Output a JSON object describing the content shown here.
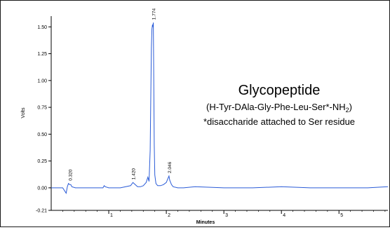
{
  "chart_data": {
    "type": "line",
    "title": "Glycopeptide",
    "subtitle_main": "(H-Tyr-DAla-Gly-Phe-Leu-Ser*-NH",
    "subtitle_sub": "2",
    "subtitle_end": ")",
    "note": "*disaccharide attached to Ser residue",
    "xlabel": "Minutes",
    "ylabel": "Volts",
    "xlim": [
      0,
      5.85
    ],
    "ylim": [
      -0.21,
      1.6
    ],
    "x_ticks": [
      1,
      2,
      3,
      4,
      5
    ],
    "y_ticks": [
      -0.21,
      0.0,
      0.25,
      0.5,
      0.75,
      1.0,
      1.25,
      1.5
    ],
    "y_tick_labels": [
      "-0.21",
      "0.00",
      "0.25",
      "0.50",
      "0.75",
      "1.00",
      "1.25",
      "1.50"
    ],
    "line_color": "#2a5bd7",
    "series": [
      {
        "x": [
          0.0,
          0.2,
          0.26,
          0.28,
          0.3,
          0.32,
          0.34,
          0.36,
          0.42,
          0.6,
          0.8,
          0.9,
          0.92,
          0.94,
          1.0,
          1.2,
          1.38,
          1.42,
          1.46,
          1.5,
          1.55,
          1.6,
          1.65,
          1.68,
          1.7,
          1.72,
          1.73,
          1.74,
          1.75,
          1.76,
          1.765,
          1.774,
          1.78,
          1.79,
          1.8,
          1.82,
          1.85,
          1.9,
          1.95,
          2.0,
          2.03,
          2.046,
          2.06,
          2.09,
          2.12,
          2.2,
          2.3,
          2.5,
          3.0,
          3.5,
          4.0,
          4.5,
          5.0,
          5.5,
          5.85
        ],
        "y": [
          0.0,
          0.0,
          -0.05,
          0.01,
          0.04,
          0.03,
          0.03,
          0.01,
          0.0,
          0.0,
          0.0,
          0.0,
          0.02,
          0.01,
          0.0,
          0.0,
          0.02,
          0.05,
          0.03,
          0.01,
          0.01,
          0.02,
          0.05,
          0.1,
          0.06,
          0.35,
          0.8,
          1.3,
          1.48,
          1.52,
          1.5,
          1.54,
          1.1,
          0.4,
          0.12,
          0.04,
          0.02,
          0.02,
          0.03,
          0.05,
          0.09,
          0.11,
          0.07,
          0.03,
          0.01,
          0.0,
          0.0,
          0.01,
          0.0,
          0.0,
          0.01,
          0.0,
          0.0,
          0.0,
          0.01
        ]
      }
    ],
    "peak_labels": [
      {
        "x": 0.32,
        "y": 0.04,
        "text": "0.320"
      },
      {
        "x": 1.42,
        "y": 0.05,
        "text": "1.420"
      },
      {
        "x": 1.774,
        "y": 1.54,
        "text": "1.774"
      },
      {
        "x": 2.046,
        "y": 0.11,
        "text": "2.046"
      }
    ]
  }
}
